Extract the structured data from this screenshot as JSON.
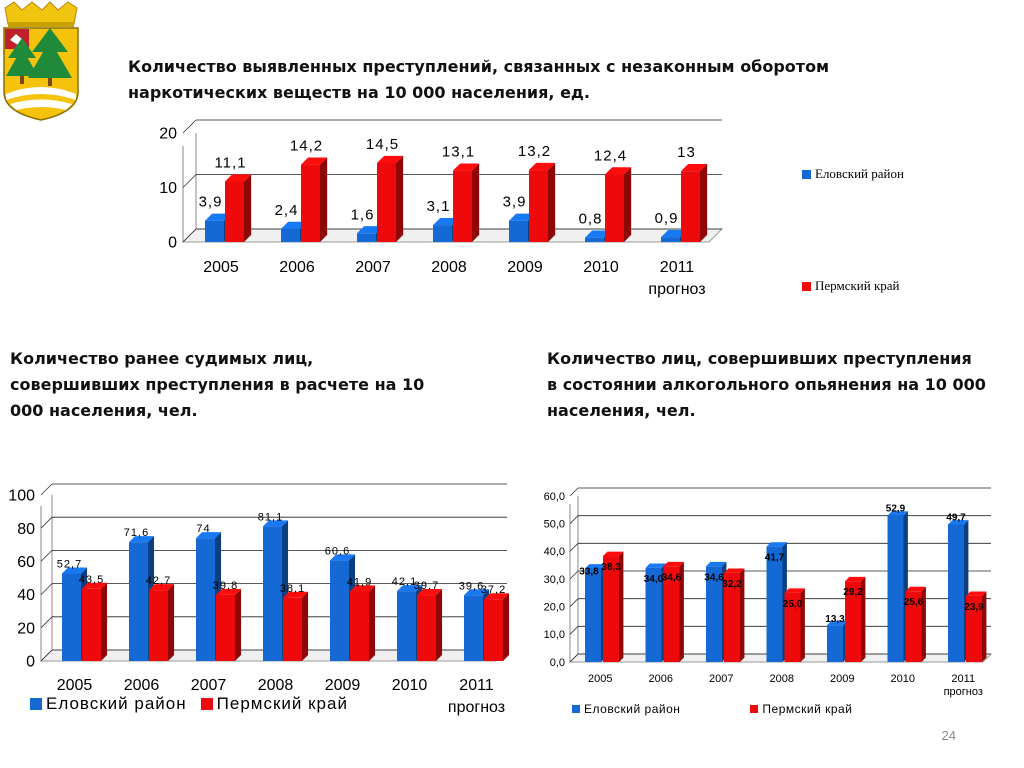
{
  "page_number": "24",
  "colors": {
    "blue": "#1469d4",
    "red": "#ee0a0a"
  },
  "chart_data": [
    {
      "type": "bar",
      "title": "Количество выявленных преступлений, связанных с незаконным оборотом наркотических веществ на 10 000 населения, ед.",
      "categories": [
        "2005",
        "2006",
        "2007",
        "2008",
        "2009",
        "2010",
        "2011"
      ],
      "category_sublabels": [
        "",
        "",
        "",
        "",
        "",
        "",
        "прогноз"
      ],
      "series": [
        {
          "name": "Еловский район",
          "values": [
            3.9,
            2.4,
            1.6,
            3.1,
            3.9,
            0.8,
            0.9
          ],
          "labels": [
            "3,9",
            "2,4",
            "1,6",
            "3,1",
            "3,9",
            "0,8",
            "0,9"
          ]
        },
        {
          "name": "Пермский край",
          "values": [
            11.1,
            14.2,
            14.5,
            13.1,
            13.2,
            12.4,
            13
          ],
          "labels": [
            "11,1",
            "14,2",
            "14,5",
            "13,1",
            "13,2",
            "12,4",
            "13"
          ]
        }
      ],
      "ylim": [
        0,
        20
      ],
      "yticks": [
        0,
        10,
        20
      ],
      "ytick_labels": [
        "0",
        "10",
        "20"
      ],
      "grid": true,
      "legend": "right"
    },
    {
      "type": "bar",
      "title": "Количество ранее судимых лиц, совершивших  преступления в расчете на 10 000 населения, чел.",
      "categories": [
        "2005",
        "2006",
        "2007",
        "2008",
        "2009",
        "2010",
        "2011"
      ],
      "category_sublabels": [
        "",
        "",
        "",
        "",
        "",
        "",
        "прогноз"
      ],
      "series": [
        {
          "name": "Еловский район",
          "values": [
            52.7,
            71.6,
            74,
            81.1,
            60.6,
            42.1,
            39.6
          ],
          "labels": [
            "52,7",
            "71,6",
            "74",
            "81,1",
            "60,6",
            "42,1",
            "39,6"
          ]
        },
        {
          "name": "Пермский край",
          "values": [
            43.5,
            42.7,
            39.8,
            38.1,
            41.9,
            39.7,
            37.2
          ],
          "labels": [
            "43,5",
            "42,7",
            "39,8",
            "38,1",
            "41,9",
            "39,7",
            "37,2"
          ]
        }
      ],
      "ylim": [
        0,
        100
      ],
      "yticks": [
        0,
        20,
        40,
        60,
        80,
        100
      ],
      "ytick_labels": [
        "0",
        "20",
        "40",
        "60",
        "80",
        "100"
      ],
      "grid": true,
      "legend": "bottom"
    },
    {
      "type": "bar",
      "title": "Количество лиц, совершивших преступления в состоянии алкогольного опьянения на 10 000 населения, чел.",
      "categories": [
        "2005",
        "2006",
        "2007",
        "2008",
        "2009",
        "2010",
        "2011"
      ],
      "category_sublabels": [
        "",
        "",
        "",
        "",
        "",
        "",
        "прогноз"
      ],
      "series": [
        {
          "name": "Еловский район",
          "values": [
            33.8,
            34.0,
            34.6,
            41.7,
            13.3,
            52.9,
            49.7
          ],
          "labels": [
            "33,8",
            "34,0",
            "34,6",
            "41,7",
            "13,3",
            "52,9",
            "49,7"
          ]
        },
        {
          "name": "Пермский край",
          "values": [
            38.3,
            34.6,
            32.2,
            25.0,
            29.2,
            25.6,
            23.9
          ],
          "labels": [
            "38,3",
            "34,6",
            "32,2",
            "25,0",
            "29,2",
            "25,6",
            "23,9"
          ]
        }
      ],
      "ylim": [
        0,
        60
      ],
      "yticks": [
        0,
        10,
        20,
        30,
        40,
        50,
        60
      ],
      "ytick_labels": [
        "0,0",
        "10,0",
        "20,0",
        "30,0",
        "40,0",
        "50,0",
        "60,0"
      ],
      "grid": true,
      "legend": "bottom"
    }
  ]
}
